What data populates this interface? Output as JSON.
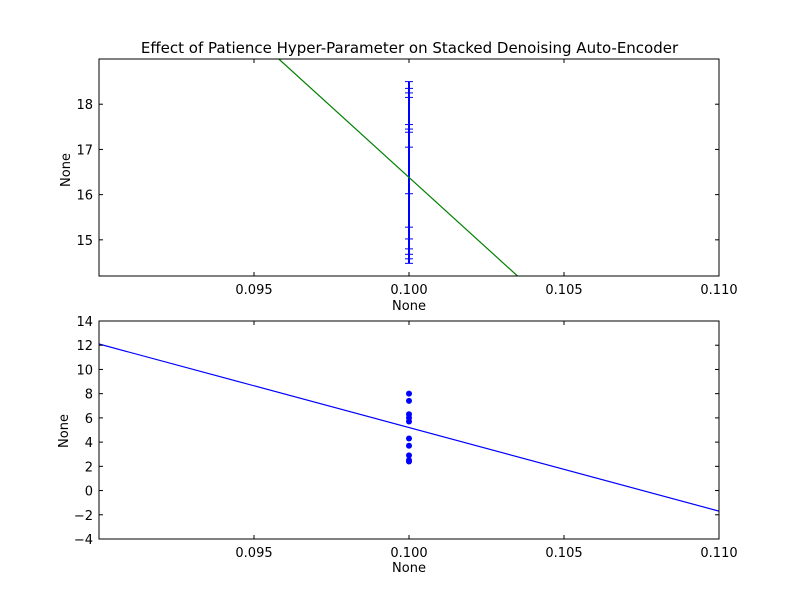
{
  "figure": {
    "title": "Effect of Patience Hyper-Parameter on Stacked Denoising Auto-Encoder"
  },
  "chart_data": [
    {
      "type": "line",
      "title": "Effect of Patience Hyper-Parameter on Stacked Denoising Auto-Encoder",
      "xlabel": "None",
      "ylabel": "None",
      "xlim": [
        0.09,
        0.11
      ],
      "ylim": [
        14.2,
        19.0
      ],
      "xticks": [
        "0.095",
        "0.100",
        "0.105",
        "0.110"
      ],
      "xtick_values": [
        0.095,
        0.1,
        0.105,
        0.11
      ],
      "yticks": [
        "15",
        "16",
        "17",
        "18"
      ],
      "ytick_values": [
        15,
        16,
        17,
        18
      ],
      "grid": false,
      "series": [
        {
          "kind": "errorbar",
          "color": "#0000ff",
          "x": 0.1,
          "caps": [
            18.5,
            18.35,
            18.25,
            18.15,
            17.55,
            17.45,
            17.38,
            17.05,
            16.02,
            15.28,
            15.02,
            14.8,
            14.68,
            14.58,
            14.48
          ]
        },
        {
          "kind": "fit-line",
          "color": "#008000",
          "x": [
            0.0958,
            0.1035
          ],
          "y": [
            19.0,
            14.2
          ]
        }
      ]
    },
    {
      "type": "scatter",
      "title": "",
      "xlabel": "None",
      "ylabel": "None",
      "xlim": [
        0.09,
        0.11
      ],
      "ylim": [
        -4,
        14
      ],
      "xticks": [
        "0.095",
        "0.100",
        "0.105",
        "0.110"
      ],
      "xtick_values": [
        0.095,
        0.1,
        0.105,
        0.11
      ],
      "yticks": [
        "−4",
        "−2",
        "0",
        "2",
        "4",
        "6",
        "8",
        "10",
        "12",
        "14"
      ],
      "ytick_values": [
        -4,
        -2,
        0,
        2,
        4,
        6,
        8,
        10,
        12,
        14
      ],
      "grid": false,
      "series": [
        {
          "kind": "points",
          "color": "#0000ff",
          "x": [
            0.1,
            0.1,
            0.1,
            0.1,
            0.1,
            0.1,
            0.1,
            0.1,
            0.1,
            0.1
          ],
          "y": [
            8.0,
            7.4,
            6.3,
            6.0,
            5.7,
            4.3,
            3.7,
            2.9,
            2.4,
            2.5
          ]
        },
        {
          "kind": "fit-line",
          "color": "#0000ff",
          "x": [
            0.09,
            0.11
          ],
          "y": [
            12.1,
            -1.7
          ]
        }
      ]
    }
  ]
}
